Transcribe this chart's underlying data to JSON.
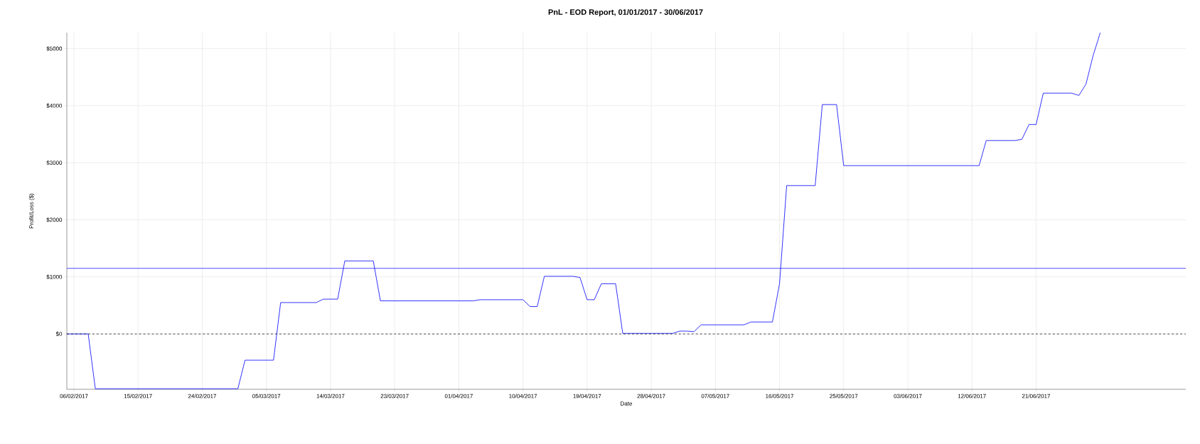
{
  "chart_data": {
    "type": "line",
    "title": "PnL - EOD Report, 01/01/2017 - 30/06/2017",
    "xlabel": "Date",
    "ylabel": "Profit/Loss ($)",
    "x": [
      "2017-02-05",
      "2017-02-08",
      "2017-02-09",
      "2017-03-01",
      "2017-03-02",
      "2017-03-06",
      "2017-03-07",
      "2017-03-12",
      "2017-03-13",
      "2017-03-15",
      "2017-03-16",
      "2017-03-20",
      "2017-03-21",
      "2017-04-03",
      "2017-04-04",
      "2017-04-10",
      "2017-04-11",
      "2017-04-12",
      "2017-04-13",
      "2017-04-17",
      "2017-04-18",
      "2017-04-19",
      "2017-04-20",
      "2017-04-21",
      "2017-04-23",
      "2017-04-24",
      "2017-05-01",
      "2017-05-02",
      "2017-05-03",
      "2017-05-04",
      "2017-05-05",
      "2017-05-11",
      "2017-05-12",
      "2017-05-15",
      "2017-05-16",
      "2017-05-17",
      "2017-05-21",
      "2017-05-22",
      "2017-05-24",
      "2017-05-25",
      "2017-06-13",
      "2017-06-14",
      "2017-06-18",
      "2017-06-19",
      "2017-06-20",
      "2017-06-21",
      "2017-06-22",
      "2017-06-26",
      "2017-06-27",
      "2017-06-28",
      "2017-06-29",
      "2017-06-30"
    ],
    "series": [
      {
        "color": "#0000ff",
        "values": [
          0,
          0,
          -960,
          -960,
          -460,
          -460,
          550,
          550,
          610,
          610,
          1280,
          1280,
          580,
          580,
          600,
          600,
          480,
          480,
          1010,
          1010,
          990,
          600,
          600,
          880,
          880,
          10,
          10,
          50,
          50,
          40,
          160,
          160,
          210,
          210,
          880,
          2600,
          2600,
          4020,
          4020,
          2950,
          2950,
          3390,
          3390,
          3410,
          3670,
          3670,
          4220,
          4220,
          4180,
          4380,
          4880,
          5280
        ]
      }
    ],
    "xlim": [
      "2017-02-05",
      "2017-07-12"
    ],
    "ylim": [
      -970,
      5280
    ],
    "xticks": [
      {
        "value": "2017-02-06",
        "label": "06/02/2017"
      },
      {
        "value": "2017-02-15",
        "label": "15/02/2017"
      },
      {
        "value": "2017-02-24",
        "label": "24/02/2017"
      },
      {
        "value": "2017-03-05",
        "label": "05/03/2017"
      },
      {
        "value": "2017-03-14",
        "label": "14/03/2017"
      },
      {
        "value": "2017-03-23",
        "label": "23/03/2017"
      },
      {
        "value": "2017-04-01",
        "label": "01/04/2017"
      },
      {
        "value": "2017-04-10",
        "label": "10/04/2017"
      },
      {
        "value": "2017-04-19",
        "label": "19/04/2017"
      },
      {
        "value": "2017-04-28",
        "label": "28/04/2017"
      },
      {
        "value": "2017-05-07",
        "label": "07/05/2017"
      },
      {
        "value": "2017-05-16",
        "label": "16/05/2017"
      },
      {
        "value": "2017-05-25",
        "label": "25/05/2017"
      },
      {
        "value": "2017-06-03",
        "label": "03/06/2017"
      },
      {
        "value": "2017-06-12",
        "label": "12/06/2017"
      },
      {
        "value": "2017-06-21",
        "label": "21/06/2017"
      }
    ],
    "yticks": [
      {
        "value": 0,
        "label": "$0"
      },
      {
        "value": 1000,
        "label": "$1000"
      },
      {
        "value": 2000,
        "label": "$2000"
      },
      {
        "value": 3000,
        "label": "$3000"
      },
      {
        "value": 4000,
        "label": "$4000"
      },
      {
        "value": 5000,
        "label": "$5000"
      }
    ],
    "ref_lines": [
      {
        "axis": "y",
        "value": 1150,
        "color": "#0000ff",
        "line_style": "solid"
      },
      {
        "axis": "y",
        "value": 0,
        "color": "#000000",
        "line_style": "dashed"
      }
    ],
    "grid": true,
    "marker": "none",
    "line_style": "solid"
  }
}
